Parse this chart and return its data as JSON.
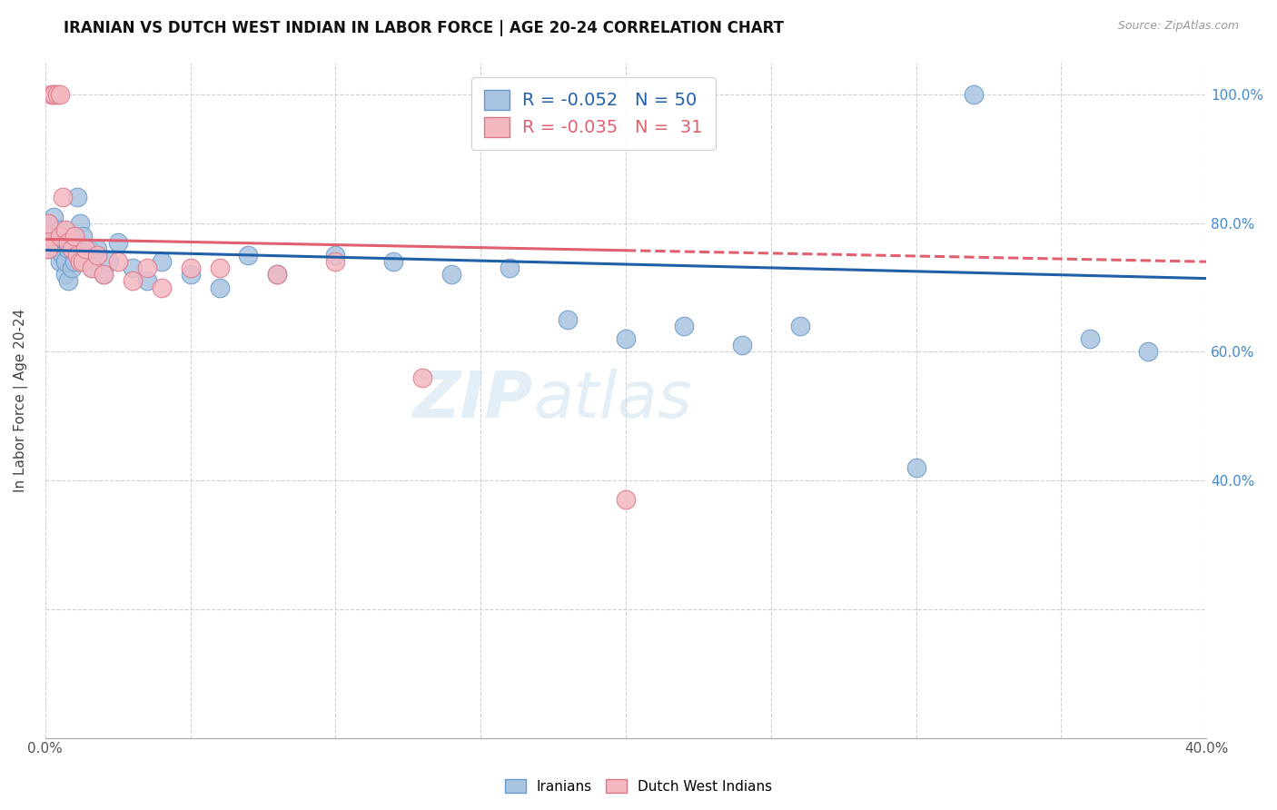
{
  "title": "IRANIAN VS DUTCH WEST INDIAN IN LABOR FORCE | AGE 20-24 CORRELATION CHART",
  "source": "Source: ZipAtlas.com",
  "ylabel": "In Labor Force | Age 20-24",
  "xlim": [
    0.0,
    0.4
  ],
  "ylim": [
    0.0,
    1.05
  ],
  "watermark": "ZIPatlas",
  "iranians_R": "-0.052",
  "iranians_N": "50",
  "dutch_R": "-0.035",
  "dutch_N": "31",
  "iranian_color": "#a8c4e0",
  "dutch_color": "#f4b8c1",
  "iranian_line_color": "#2060a8",
  "dutch_line_color": "#e06070",
  "background_color": "#ffffff",
  "iranians_x": [
    0.001,
    0.001,
    0.001,
    0.002,
    0.002,
    0.003,
    0.003,
    0.004,
    0.004,
    0.005,
    0.005,
    0.006,
    0.006,
    0.007,
    0.007,
    0.008,
    0.008,
    0.009,
    0.009,
    0.01,
    0.011,
    0.012,
    0.013,
    0.014,
    0.015,
    0.016,
    0.018,
    0.02,
    0.022,
    0.025,
    0.03,
    0.035,
    0.04,
    0.05,
    0.06,
    0.07,
    0.08,
    0.1,
    0.12,
    0.14,
    0.16,
    0.18,
    0.2,
    0.22,
    0.24,
    0.26,
    0.3,
    0.32,
    0.36,
    0.38
  ],
  "iranians_y": [
    0.78,
    0.8,
    0.76,
    0.79,
    0.77,
    0.78,
    0.81,
    0.76,
    0.78,
    0.79,
    0.74,
    0.77,
    0.75,
    0.72,
    0.74,
    0.76,
    0.71,
    0.73,
    0.76,
    0.74,
    0.84,
    0.8,
    0.78,
    0.75,
    0.76,
    0.73,
    0.76,
    0.72,
    0.74,
    0.77,
    0.73,
    0.71,
    0.74,
    0.72,
    0.7,
    0.75,
    0.72,
    0.75,
    0.74,
    0.72,
    0.73,
    0.65,
    0.62,
    0.64,
    0.61,
    0.64,
    0.42,
    1.0,
    0.62,
    0.6
  ],
  "dutch_x": [
    0.001,
    0.001,
    0.001,
    0.002,
    0.003,
    0.003,
    0.004,
    0.005,
    0.005,
    0.006,
    0.007,
    0.008,
    0.009,
    0.01,
    0.011,
    0.012,
    0.013,
    0.014,
    0.016,
    0.018,
    0.02,
    0.025,
    0.03,
    0.035,
    0.04,
    0.05,
    0.06,
    0.08,
    0.1,
    0.13,
    0.2
  ],
  "dutch_y": [
    0.78,
    0.8,
    0.76,
    1.0,
    1.0,
    1.0,
    1.0,
    1.0,
    0.78,
    0.84,
    0.79,
    0.77,
    0.76,
    0.78,
    0.75,
    0.74,
    0.74,
    0.76,
    0.73,
    0.75,
    0.72,
    0.74,
    0.71,
    0.73,
    0.7,
    0.73,
    0.73,
    0.72,
    0.74,
    0.56,
    0.37
  ],
  "xticks": [
    0.0,
    0.05,
    0.1,
    0.15,
    0.2,
    0.25,
    0.3,
    0.35,
    0.4
  ],
  "xticklabels": [
    "0.0%",
    "",
    "",
    "",
    "",
    "",
    "",
    "",
    "40.0%"
  ],
  "yticks": [
    0.0,
    0.2,
    0.4,
    0.6,
    0.8,
    1.0
  ],
  "yticklabels_right": [
    "",
    "",
    "40.0%",
    "60.0%",
    "80.0%",
    "100.0%"
  ],
  "iran_trend_x0": 0.0,
  "iran_trend_y0": 0.758,
  "iran_trend_x1": 0.4,
  "iran_trend_y1": 0.714,
  "dutch_trend_x0": 0.0,
  "dutch_trend_y0": 0.775,
  "dutch_trend_x1": 0.4,
  "dutch_trend_y1": 0.74
}
